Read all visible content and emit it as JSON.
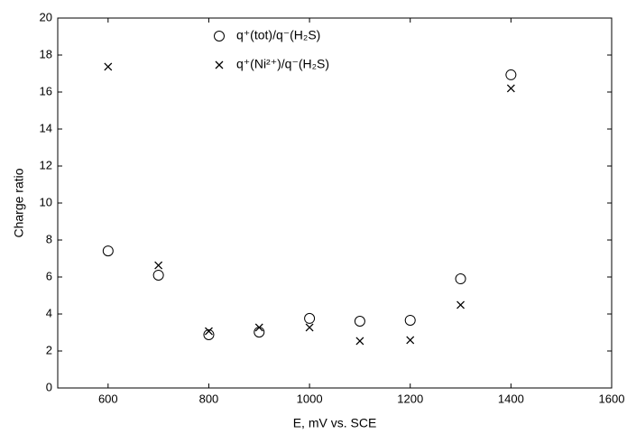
{
  "chart_data": {
    "type": "scatter",
    "xlabel": "E, mV vs. SCE",
    "ylabel": "Charge ratio",
    "x": [
      600,
      700,
      800,
      900,
      1000,
      1100,
      1200,
      1300,
      1400
    ],
    "series": [
      {
        "name": "q⁺(tot)/q⁻(H₂S)",
        "color": "#000000",
        "marker": "circle",
        "values": [
          7.41,
          6.1,
          2.88,
          3.02,
          3.76,
          3.61,
          3.66,
          5.9,
          16.93
        ]
      },
      {
        "name": "q⁺(Ni²⁺)/q⁻(H₂S)",
        "color": "#000000",
        "marker": "cross",
        "values": [
          17.37,
          6.63,
          3.07,
          3.27,
          3.27,
          2.54,
          2.59,
          4.49,
          16.2
        ]
      }
    ],
    "xlim": [
      500,
      1600
    ],
    "xticks": [
      600,
      800,
      1000,
      1200,
      1400,
      1600
    ],
    "ylim": [
      0,
      20
    ],
    "yticks": [
      0,
      2,
      4,
      6,
      8,
      10,
      12,
      14,
      16,
      18,
      20
    ],
    "grid": false
  }
}
